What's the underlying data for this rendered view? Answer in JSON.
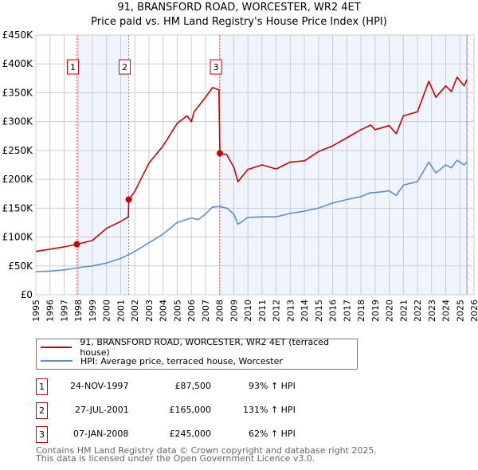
{
  "chart_data": {
    "type": "line",
    "title": "91, BRANSFORD ROAD, WORCESTER, WR2 4ET",
    "subtitle": "Price paid vs. HM Land Registry's House Price Index (HPI)",
    "xlim": [
      1995,
      2026
    ],
    "ylim": [
      0,
      450000
    ],
    "x_ticks": [
      "1995",
      "1996",
      "1997",
      "1998",
      "1999",
      "2000",
      "2001",
      "2002",
      "2003",
      "2004",
      "2005",
      "2006",
      "2007",
      "2008",
      "2009",
      "2010",
      "2011",
      "2012",
      "2013",
      "2014",
      "2015",
      "2016",
      "2017",
      "2018",
      "2019",
      "2020",
      "2021",
      "2022",
      "2023",
      "2024",
      "2025",
      "2026"
    ],
    "y_ticks": [
      {
        "v": 0,
        "label": "£0"
      },
      {
        "v": 50000,
        "label": "£50K"
      },
      {
        "v": 100000,
        "label": "£100K"
      },
      {
        "v": 150000,
        "label": "£150K"
      },
      {
        "v": 200000,
        "label": "£200K"
      },
      {
        "v": 250000,
        "label": "£250K"
      },
      {
        "v": 300000,
        "label": "£300K"
      },
      {
        "v": 350000,
        "label": "£350K"
      },
      {
        "v": 400000,
        "label": "£400K"
      },
      {
        "v": 450000,
        "label": "£450K"
      }
    ],
    "grid": true,
    "data_end": 2025.5,
    "series": [
      {
        "name": "91, BRANSFORD ROAD, WORCESTER, WR2 4ET (terraced house)",
        "color": "#cc0000",
        "x": [
          1995,
          1996,
          1997,
          1997.9,
          1999,
          2000,
          2001,
          2001.55,
          2001.57,
          2002,
          2003,
          2004,
          2005,
          2005.7,
          2006,
          2006.2,
          2007,
          2007.5,
          2007.95,
          2008.02,
          2008.5,
          2009,
          2009.3,
          2010,
          2011,
          2012,
          2013,
          2014,
          2015,
          2016,
          2017,
          2018,
          2018.7,
          2019,
          2020,
          2020.5,
          2021,
          2022,
          2022.8,
          2023.3,
          2024,
          2024.4,
          2024.8,
          2025.3,
          2025.5
        ],
        "y": [
          75000,
          79000,
          83000,
          87500,
          94000,
          115000,
          127000,
          135000,
          165000,
          179000,
          228000,
          258000,
          297000,
          310000,
          300000,
          317000,
          342000,
          359000,
          355000,
          245000,
          243000,
          221000,
          196000,
          217000,
          225000,
          218000,
          230000,
          232000,
          248000,
          258000,
          272000,
          286000,
          294000,
          286000,
          293000,
          279000,
          310000,
          317000,
          370000,
          342000,
          362000,
          352000,
          377000,
          362000,
          373000
        ]
      },
      {
        "name": "HPI: Average price, terraced house, Worcester",
        "color": "#5b8fd4",
        "x": [
          1995,
          1996,
          1997,
          1998,
          1999,
          2000,
          2001,
          2001.6,
          2002,
          2003,
          2004,
          2005,
          2006,
          2006.5,
          2007,
          2007.5,
          2008,
          2008.5,
          2009,
          2009.3,
          2010,
          2011,
          2012,
          2013,
          2014,
          2015,
          2016,
          2017,
          2018,
          2018.7,
          2019,
          2020,
          2020.5,
          2021,
          2022,
          2022.8,
          2023.3,
          2024,
          2024.4,
          2024.8,
          2025.3,
          2025.5
        ],
        "y": [
          40000,
          41000,
          43000,
          47000,
          50000,
          55000,
          63000,
          70000,
          75000,
          90000,
          105000,
          125000,
          133000,
          130000,
          140000,
          152000,
          153000,
          150000,
          140000,
          122000,
          134000,
          135000,
          135000,
          141000,
          145000,
          150000,
          159000,
          165000,
          170000,
          177000,
          177000,
          180000,
          172000,
          190000,
          196000,
          230000,
          211000,
          225000,
          220000,
          233000,
          225000,
          230000
        ]
      }
    ],
    "sales": [
      {
        "label": "1",
        "x": 1997.9,
        "y": 87500,
        "date": "24-NOV-1997",
        "price": "£87,500",
        "hpi": "93% ↑ HPI"
      },
      {
        "label": "2",
        "x": 2001.57,
        "y": 165000,
        "date": "27-JUL-2001",
        "price": "£165,000",
        "hpi": "131% ↑ HPI"
      },
      {
        "label": "3",
        "x": 2008.02,
        "y": 245000,
        "date": "07-JAN-2008",
        "price": "£245,000",
        "hpi": "62% ↑ HPI"
      }
    ],
    "legend": [
      "91, BRANSFORD ROAD, WORCESTER, WR2 4ET (terraced house)",
      "HPI: Average price, terraced house, Worcester"
    ],
    "footer": [
      "Contains HM Land Registry data © Crown copyright and database right 2025.",
      "This data is licensed under the Open Government Licence v3.0."
    ]
  }
}
